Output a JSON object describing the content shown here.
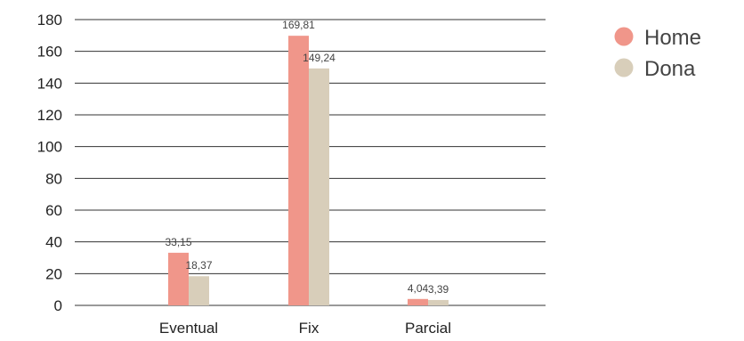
{
  "chart_data": {
    "type": "bar",
    "categories": [
      "Eventual",
      "Fix",
      "Parcial"
    ],
    "series": [
      {
        "name": "Home",
        "values": [
          33.15,
          169.81,
          4.04
        ],
        "labels": [
          "33,15",
          "169,81",
          "4,04"
        ],
        "color": "#f0968a"
      },
      {
        "name": "Dona",
        "values": [
          18.37,
          149.24,
          3.39
        ],
        "labels": [
          "18,37",
          "149,24",
          "3,39"
        ],
        "color": "#d8ceba"
      }
    ],
    "y_ticks": [
      "0",
      "20",
      "40",
      "60",
      "80",
      "100",
      "120",
      "140",
      "160",
      "180"
    ],
    "ylim": [
      0,
      180
    ],
    "grid": true,
    "legend_position": "top-right",
    "title": "",
    "xlabel": "",
    "ylabel": ""
  }
}
